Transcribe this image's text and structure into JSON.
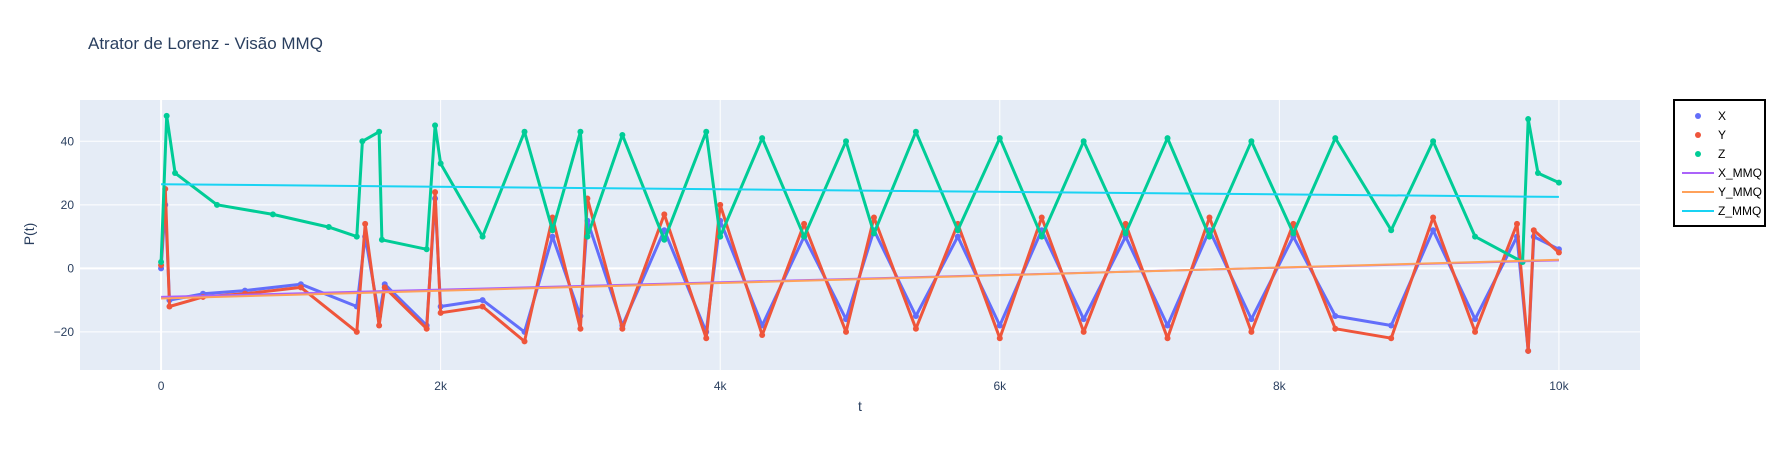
{
  "chart_data": {
    "type": "scatter",
    "title": "Atrator de Lorenz - Visão MMQ",
    "xlabel": "t",
    "ylabel": "P(t)",
    "xlim": [
      -580,
      10580
    ],
    "ylim": [
      -32,
      53
    ],
    "x_ticks": [
      0,
      2000,
      4000,
      6000,
      8000,
      10000
    ],
    "x_tick_labels": [
      "0",
      "2k",
      "4k",
      "6k",
      "8k",
      "10k"
    ],
    "y_ticks": [
      -20,
      0,
      20,
      40
    ],
    "y_tick_labels": [
      "−20",
      "0",
      "20",
      "40"
    ],
    "grid": true,
    "legend_position": "right",
    "colors": {
      "X": "#636efa",
      "Y": "#ef553b",
      "Z": "#00cc96",
      "X_MMQ": "#ab63fa",
      "Y_MMQ": "#ffa15a",
      "Z_MMQ": "#19d3f3"
    },
    "series": [
      {
        "name": "X",
        "mode": "markers",
        "x": [
          0,
          30,
          60,
          300,
          600,
          1000,
          1400,
          1460,
          1560,
          1600,
          1900,
          1960,
          2000,
          2300,
          2600,
          2800,
          3000,
          3050,
          3300,
          3600,
          3900,
          4000,
          4300,
          4600,
          4900,
          5100,
          5400,
          5700,
          6000,
          6300,
          6600,
          6900,
          7200,
          7500,
          7800,
          8100,
          8400,
          8800,
          9100,
          9400,
          9700,
          9780,
          9820,
          10000
        ],
        "y": [
          0,
          20,
          -10,
          -8,
          -7,
          -5,
          -12,
          10,
          -15,
          -5,
          -18,
          22,
          -12,
          -10,
          -20,
          10,
          -15,
          15,
          -18,
          12,
          -20,
          15,
          -18,
          10,
          -16,
          12,
          -15,
          10,
          -18,
          12,
          -16,
          10,
          -18,
          12,
          -16,
          10,
          -15,
          -18,
          12,
          -16,
          10,
          -26,
          10,
          6
        ]
      },
      {
        "name": "Y",
        "mode": "markers",
        "x": [
          0,
          30,
          60,
          300,
          600,
          1000,
          1400,
          1460,
          1560,
          1600,
          1900,
          1960,
          2000,
          2300,
          2600,
          2800,
          3000,
          3050,
          3300,
          3600,
          3900,
          4000,
          4300,
          4600,
          4900,
          5100,
          5400,
          5700,
          6000,
          6300,
          6600,
          6900,
          7200,
          7500,
          7800,
          8100,
          8400,
          8800,
          9100,
          9400,
          9700,
          9780,
          9820,
          10000
        ],
        "y": [
          1,
          25,
          -12,
          -9,
          -8,
          -6,
          -20,
          14,
          -18,
          -6,
          -19,
          24,
          -14,
          -12,
          -23,
          16,
          -19,
          22,
          -19,
          17,
          -22,
          20,
          -21,
          14,
          -20,
          16,
          -19,
          14,
          -22,
          16,
          -20,
          14,
          -22,
          16,
          -20,
          14,
          -19,
          -22,
          16,
          -20,
          14,
          -26,
          12,
          5
        ]
      },
      {
        "name": "Z",
        "mode": "markers",
        "x": [
          0,
          40,
          100,
          400,
          800,
          1200,
          1400,
          1440,
          1560,
          1580,
          1900,
          1960,
          2000,
          2300,
          2600,
          2800,
          3000,
          3050,
          3300,
          3600,
          3900,
          4000,
          4300,
          4600,
          4900,
          5100,
          5400,
          5700,
          6000,
          6300,
          6600,
          6900,
          7200,
          7500,
          7800,
          8100,
          8400,
          8800,
          9100,
          9400,
          9740,
          9780,
          9850,
          10000
        ],
        "y": [
          2,
          48,
          30,
          20,
          17,
          13,
          10,
          40,
          43,
          9,
          6,
          45,
          33,
          10,
          43,
          12,
          43,
          10,
          42,
          9,
          43,
          10,
          41,
          10,
          40,
          11,
          43,
          12,
          41,
          10,
          40,
          11,
          41,
          10,
          40,
          11,
          41,
          12,
          40,
          10,
          2,
          47,
          30,
          27
        ]
      },
      {
        "name": "X_MMQ",
        "mode": "lines",
        "x": [
          0,
          10000
        ],
        "y": [
          -9,
          2.5
        ]
      },
      {
        "name": "Y_MMQ",
        "mode": "lines",
        "x": [
          0,
          10000
        ],
        "y": [
          -9.5,
          2.7
        ]
      },
      {
        "name": "Z_MMQ",
        "mode": "lines",
        "x": [
          0,
          10000
        ],
        "y": [
          26.5,
          22.5
        ]
      }
    ]
  }
}
